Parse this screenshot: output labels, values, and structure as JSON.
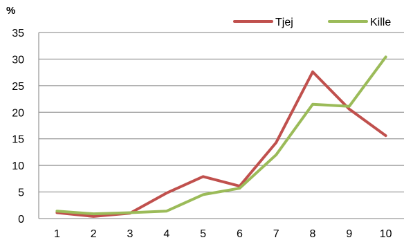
{
  "chart_data": {
    "type": "line",
    "unit_label": "%",
    "x": [
      "1",
      "2",
      "3",
      "4",
      "5",
      "6",
      "7",
      "8",
      "9",
      "10"
    ],
    "ylim": [
      0,
      35
    ],
    "yticks": [
      "0",
      "5",
      "10",
      "15",
      "20",
      "25",
      "30",
      "35"
    ],
    "grid": true,
    "legend_position": "top-right",
    "series": [
      {
        "name": "Tjej",
        "color": "#C0504D",
        "values": [
          1.1,
          0.4,
          1.0,
          4.8,
          7.9,
          6.1,
          14.3,
          27.6,
          20.6,
          15.6
        ]
      },
      {
        "name": "Kille",
        "color": "#9BBB59",
        "values": [
          1.4,
          0.9,
          1.1,
          1.4,
          4.5,
          5.7,
          12.0,
          21.5,
          21.1,
          30.4
        ]
      }
    ]
  }
}
